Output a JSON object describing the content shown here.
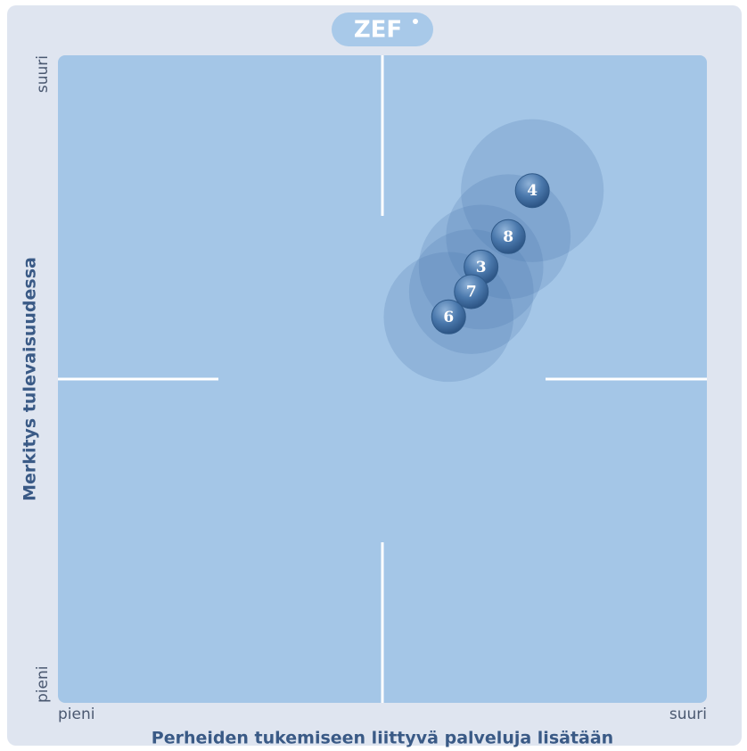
{
  "chart_data": {
    "type": "scatter",
    "logo": "ZEF",
    "x_label": "Perheiden tukemiseen liittyvä palveluja lisätään",
    "y_label": "Merkitys tulevaisuudessa",
    "xlim": [
      0,
      100
    ],
    "ylim": [
      0,
      100
    ],
    "xticks": [
      {
        "value": 0,
        "label": "pieni"
      },
      {
        "value": 100,
        "label": "suuri"
      }
    ],
    "yticks": [
      {
        "value": 0,
        "label": "pieni"
      },
      {
        "value": 100,
        "label": "suuri"
      }
    ],
    "labels": [
      "4",
      "8",
      "3",
      "7",
      "6"
    ],
    "x": [
      73.1,
      69.4,
      65.2,
      63.7,
      60.2
    ],
    "values": [
      79.1,
      72.0,
      67.3,
      63.5,
      59.6
    ],
    "sizes": [
      11,
      9.6,
      9.6,
      9.6,
      10
    ],
    "color": "#4a78ac"
  }
}
